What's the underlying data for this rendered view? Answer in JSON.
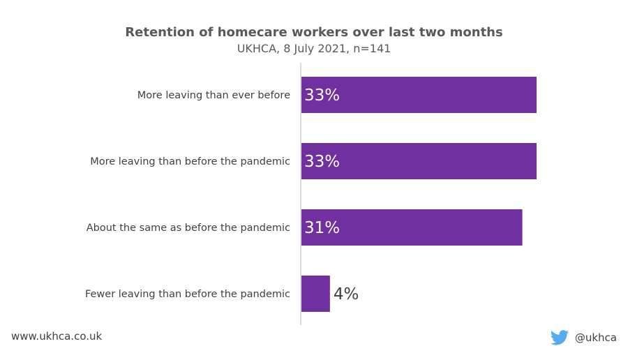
{
  "chart_data": {
    "type": "bar",
    "orientation": "horizontal",
    "title": "Retention of homecare workers over last two months",
    "subtitle": "UKHCA, 8 July 2021, n=141",
    "categories": [
      "More leaving than ever before",
      "More leaving than before the pandemic",
      "About the same as before the pandemic",
      "Fewer leaving than before the pandemic"
    ],
    "values": [
      33,
      33,
      31,
      4
    ],
    "value_labels": [
      "33%",
      "33%",
      "31%",
      "4%"
    ],
    "xlim": [
      0,
      40
    ],
    "bar_color": "#7030a0",
    "grid": false,
    "legend": "none"
  },
  "footer": {
    "url": "www.ukhca.co.uk",
    "handle": "@ukhca",
    "icon": "twitter-icon",
    "icon_color": "#55acee"
  }
}
